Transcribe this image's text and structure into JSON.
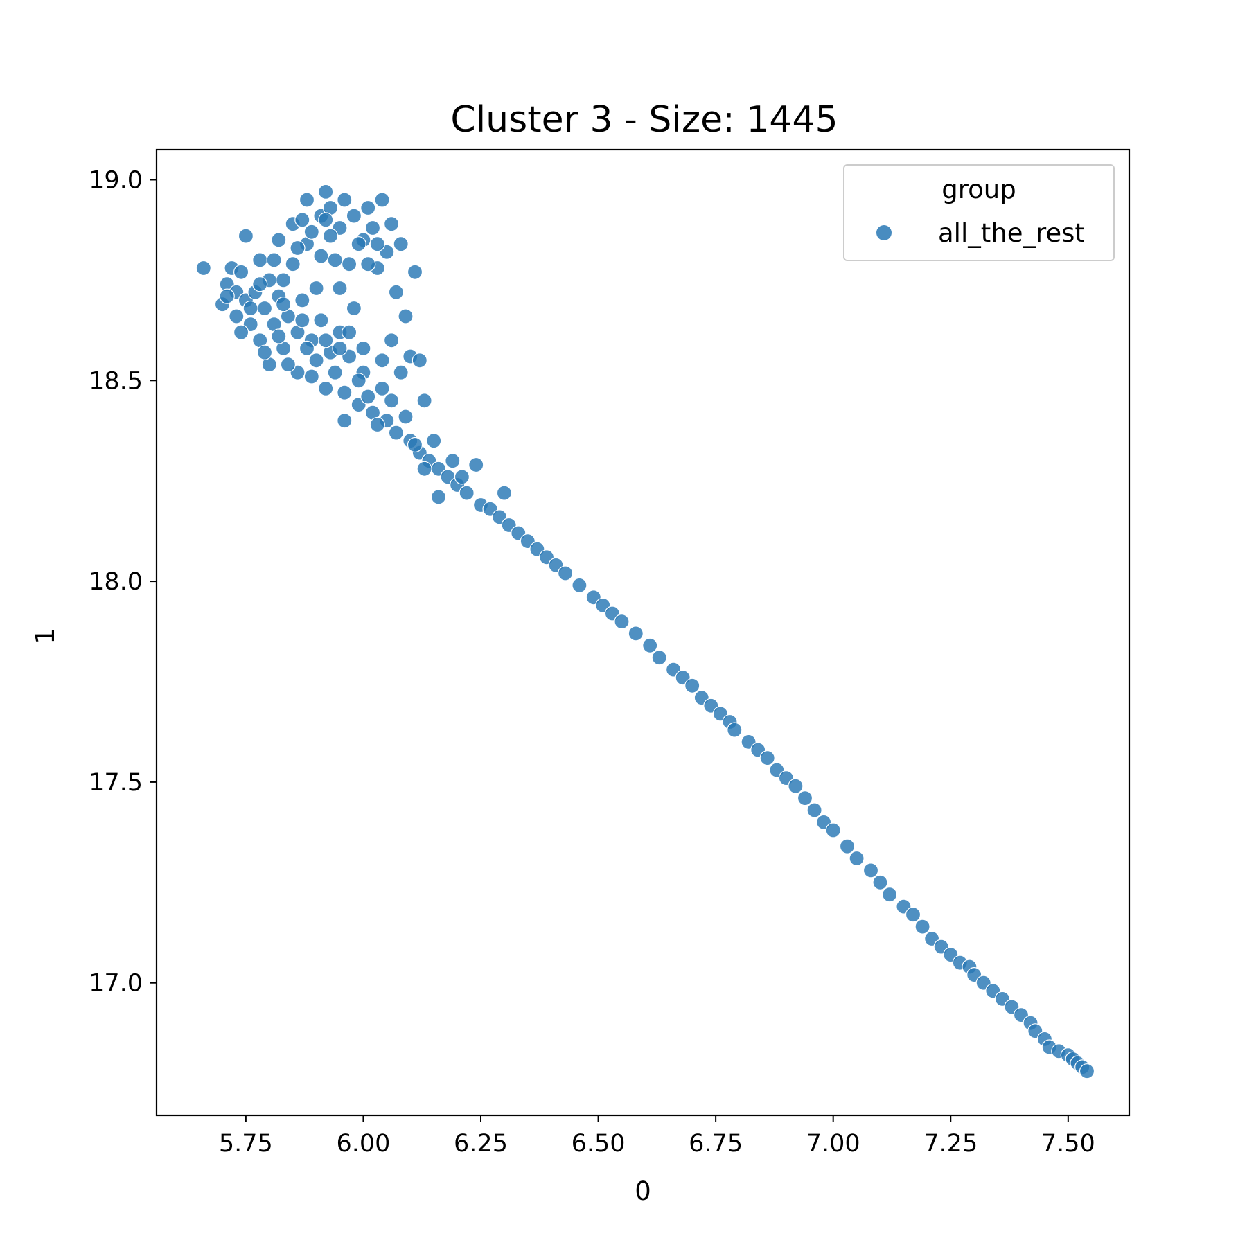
{
  "chart_data": {
    "type": "scatter",
    "title": "Cluster 3 - Size: 1445",
    "xlabel": "0",
    "ylabel": "1",
    "xlim": [
      5.56,
      7.63
    ],
    "ylim": [
      16.67,
      19.075
    ],
    "xticks": [
      5.75,
      6.0,
      6.25,
      6.5,
      6.75,
      7.0,
      7.25,
      7.5
    ],
    "xtick_labels": [
      "5.75",
      "6.00",
      "6.25",
      "6.50",
      "6.75",
      "7.00",
      "7.25",
      "7.50"
    ],
    "yticks": [
      17.0,
      17.5,
      18.0,
      18.5,
      19.0
    ],
    "ytick_labels": [
      "17.0",
      "17.5",
      "18.0",
      "18.5",
      "19.0"
    ],
    "grid": false,
    "legend": {
      "title": "group",
      "placement": "top-right",
      "entries": [
        "all_the_rest"
      ]
    },
    "marker_color": "#2878b5",
    "series": [
      {
        "name": "all_the_rest",
        "points": [
          [
            5.66,
            18.78
          ],
          [
            5.7,
            18.69
          ],
          [
            5.71,
            18.74
          ],
          [
            5.72,
            18.78
          ],
          [
            5.73,
            18.72
          ],
          [
            5.73,
            18.66
          ],
          [
            5.74,
            18.77
          ],
          [
            5.75,
            18.86
          ],
          [
            5.75,
            18.7
          ],
          [
            5.76,
            18.64
          ],
          [
            5.77,
            18.72
          ],
          [
            5.78,
            18.8
          ],
          [
            5.78,
            18.6
          ],
          [
            5.79,
            18.68
          ],
          [
            5.8,
            18.75
          ],
          [
            5.8,
            18.54
          ],
          [
            5.81,
            18.64
          ],
          [
            5.82,
            18.71
          ],
          [
            5.82,
            18.85
          ],
          [
            5.83,
            18.58
          ],
          [
            5.84,
            18.66
          ],
          [
            5.85,
            18.79
          ],
          [
            5.85,
            18.89
          ],
          [
            5.86,
            18.52
          ],
          [
            5.86,
            18.62
          ],
          [
            5.87,
            18.7
          ],
          [
            5.88,
            18.95
          ],
          [
            5.88,
            18.84
          ],
          [
            5.89,
            18.51
          ],
          [
            5.89,
            18.6
          ],
          [
            5.9,
            18.73
          ],
          [
            5.91,
            18.91
          ],
          [
            5.92,
            18.97
          ],
          [
            5.92,
            18.48
          ],
          [
            5.93,
            18.57
          ],
          [
            5.93,
            18.93
          ],
          [
            5.94,
            18.8
          ],
          [
            5.95,
            18.88
          ],
          [
            5.95,
            18.62
          ],
          [
            5.96,
            18.95
          ],
          [
            5.96,
            18.47
          ],
          [
            5.97,
            18.56
          ],
          [
            5.98,
            18.91
          ],
          [
            5.98,
            18.68
          ],
          [
            5.99,
            18.44
          ],
          [
            6.0,
            18.85
          ],
          [
            6.0,
            18.52
          ],
          [
            6.01,
            18.93
          ],
          [
            6.02,
            18.88
          ],
          [
            6.02,
            18.42
          ],
          [
            6.03,
            18.78
          ],
          [
            6.04,
            18.95
          ],
          [
            6.04,
            18.48
          ],
          [
            6.05,
            18.82
          ],
          [
            6.05,
            18.4
          ],
          [
            6.06,
            18.6
          ],
          [
            6.07,
            18.72
          ],
          [
            6.07,
            18.37
          ],
          [
            6.08,
            18.84
          ],
          [
            6.08,
            18.52
          ],
          [
            6.09,
            18.66
          ],
          [
            6.1,
            18.35
          ],
          [
            6.1,
            18.56
          ],
          [
            6.11,
            18.77
          ],
          [
            6.12,
            18.32
          ],
          [
            6.12,
            18.55
          ],
          [
            6.13,
            18.45
          ],
          [
            6.14,
            18.3
          ],
          [
            6.15,
            18.35
          ],
          [
            6.16,
            18.21
          ],
          [
            6.16,
            18.28
          ],
          [
            6.18,
            18.26
          ],
          [
            6.19,
            18.3
          ],
          [
            6.2,
            18.24
          ],
          [
            6.21,
            18.26
          ],
          [
            6.22,
            18.22
          ],
          [
            6.24,
            18.29
          ],
          [
            6.25,
            18.19
          ],
          [
            6.27,
            18.18
          ],
          [
            6.29,
            18.16
          ],
          [
            6.3,
            18.22
          ],
          [
            6.31,
            18.14
          ],
          [
            6.33,
            18.12
          ],
          [
            6.35,
            18.1
          ],
          [
            6.37,
            18.08
          ],
          [
            6.39,
            18.06
          ],
          [
            6.41,
            18.04
          ],
          [
            6.43,
            18.02
          ],
          [
            6.46,
            17.99
          ],
          [
            6.49,
            17.96
          ],
          [
            6.51,
            17.94
          ],
          [
            6.53,
            17.92
          ],
          [
            6.55,
            17.9
          ],
          [
            6.58,
            17.87
          ],
          [
            6.61,
            17.84
          ],
          [
            6.63,
            17.81
          ],
          [
            6.66,
            17.78
          ],
          [
            6.68,
            17.76
          ],
          [
            6.7,
            17.74
          ],
          [
            6.72,
            17.71
          ],
          [
            6.74,
            17.69
          ],
          [
            6.76,
            17.67
          ],
          [
            6.78,
            17.65
          ],
          [
            6.79,
            17.63
          ],
          [
            6.82,
            17.6
          ],
          [
            6.84,
            17.58
          ],
          [
            6.86,
            17.56
          ],
          [
            6.88,
            17.53
          ],
          [
            6.9,
            17.51
          ],
          [
            6.92,
            17.49
          ],
          [
            6.94,
            17.46
          ],
          [
            6.96,
            17.43
          ],
          [
            6.98,
            17.4
          ],
          [
            7.0,
            17.38
          ],
          [
            7.03,
            17.34
          ],
          [
            7.05,
            17.31
          ],
          [
            7.08,
            17.28
          ],
          [
            7.1,
            17.25
          ],
          [
            7.12,
            17.22
          ],
          [
            7.15,
            17.19
          ],
          [
            7.17,
            17.17
          ],
          [
            7.19,
            17.14
          ],
          [
            7.21,
            17.11
          ],
          [
            7.23,
            17.09
          ],
          [
            7.25,
            17.07
          ],
          [
            7.27,
            17.05
          ],
          [
            7.29,
            17.04
          ],
          [
            7.3,
            17.02
          ],
          [
            7.32,
            17.0
          ],
          [
            7.34,
            16.98
          ],
          [
            7.36,
            16.96
          ],
          [
            7.38,
            16.94
          ],
          [
            7.4,
            16.92
          ],
          [
            7.42,
            16.9
          ],
          [
            7.43,
            16.88
          ],
          [
            7.45,
            16.86
          ],
          [
            7.46,
            16.84
          ],
          [
            7.48,
            16.83
          ],
          [
            7.5,
            16.82
          ],
          [
            7.51,
            16.81
          ],
          [
            7.52,
            16.8
          ],
          [
            7.53,
            16.79
          ],
          [
            7.54,
            16.78
          ],
          [
            5.71,
            18.71
          ],
          [
            5.74,
            18.62
          ],
          [
            5.79,
            18.57
          ],
          [
            5.83,
            18.69
          ],
          [
            5.84,
            18.54
          ],
          [
            5.87,
            18.65
          ],
          [
            5.9,
            18.55
          ],
          [
            5.91,
            18.65
          ],
          [
            5.94,
            18.52
          ],
          [
            5.96,
            18.4
          ],
          [
            5.97,
            18.62
          ],
          [
            5.99,
            18.5
          ],
          [
            6.01,
            18.46
          ],
          [
            6.03,
            18.39
          ],
          [
            6.06,
            18.45
          ],
          [
            6.09,
            18.41
          ],
          [
            6.11,
            18.34
          ],
          [
            6.13,
            18.28
          ],
          [
            5.81,
            18.8
          ],
          [
            5.86,
            18.83
          ],
          [
            5.89,
            18.87
          ],
          [
            5.91,
            18.81
          ],
          [
            5.93,
            18.86
          ],
          [
            5.95,
            18.73
          ],
          [
            5.97,
            18.79
          ],
          [
            5.99,
            18.84
          ],
          [
            6.01,
            18.79
          ],
          [
            6.03,
            18.84
          ],
          [
            6.06,
            18.89
          ],
          [
            5.92,
            18.9
          ],
          [
            5.87,
            18.9
          ],
          [
            5.83,
            18.75
          ],
          [
            5.78,
            18.74
          ],
          [
            5.76,
            18.68
          ],
          [
            5.82,
            18.61
          ],
          [
            5.88,
            18.58
          ],
          [
            5.92,
            18.6
          ],
          [
            5.95,
            18.58
          ],
          [
            6.0,
            18.58
          ],
          [
            6.04,
            18.55
          ]
        ]
      }
    ]
  }
}
